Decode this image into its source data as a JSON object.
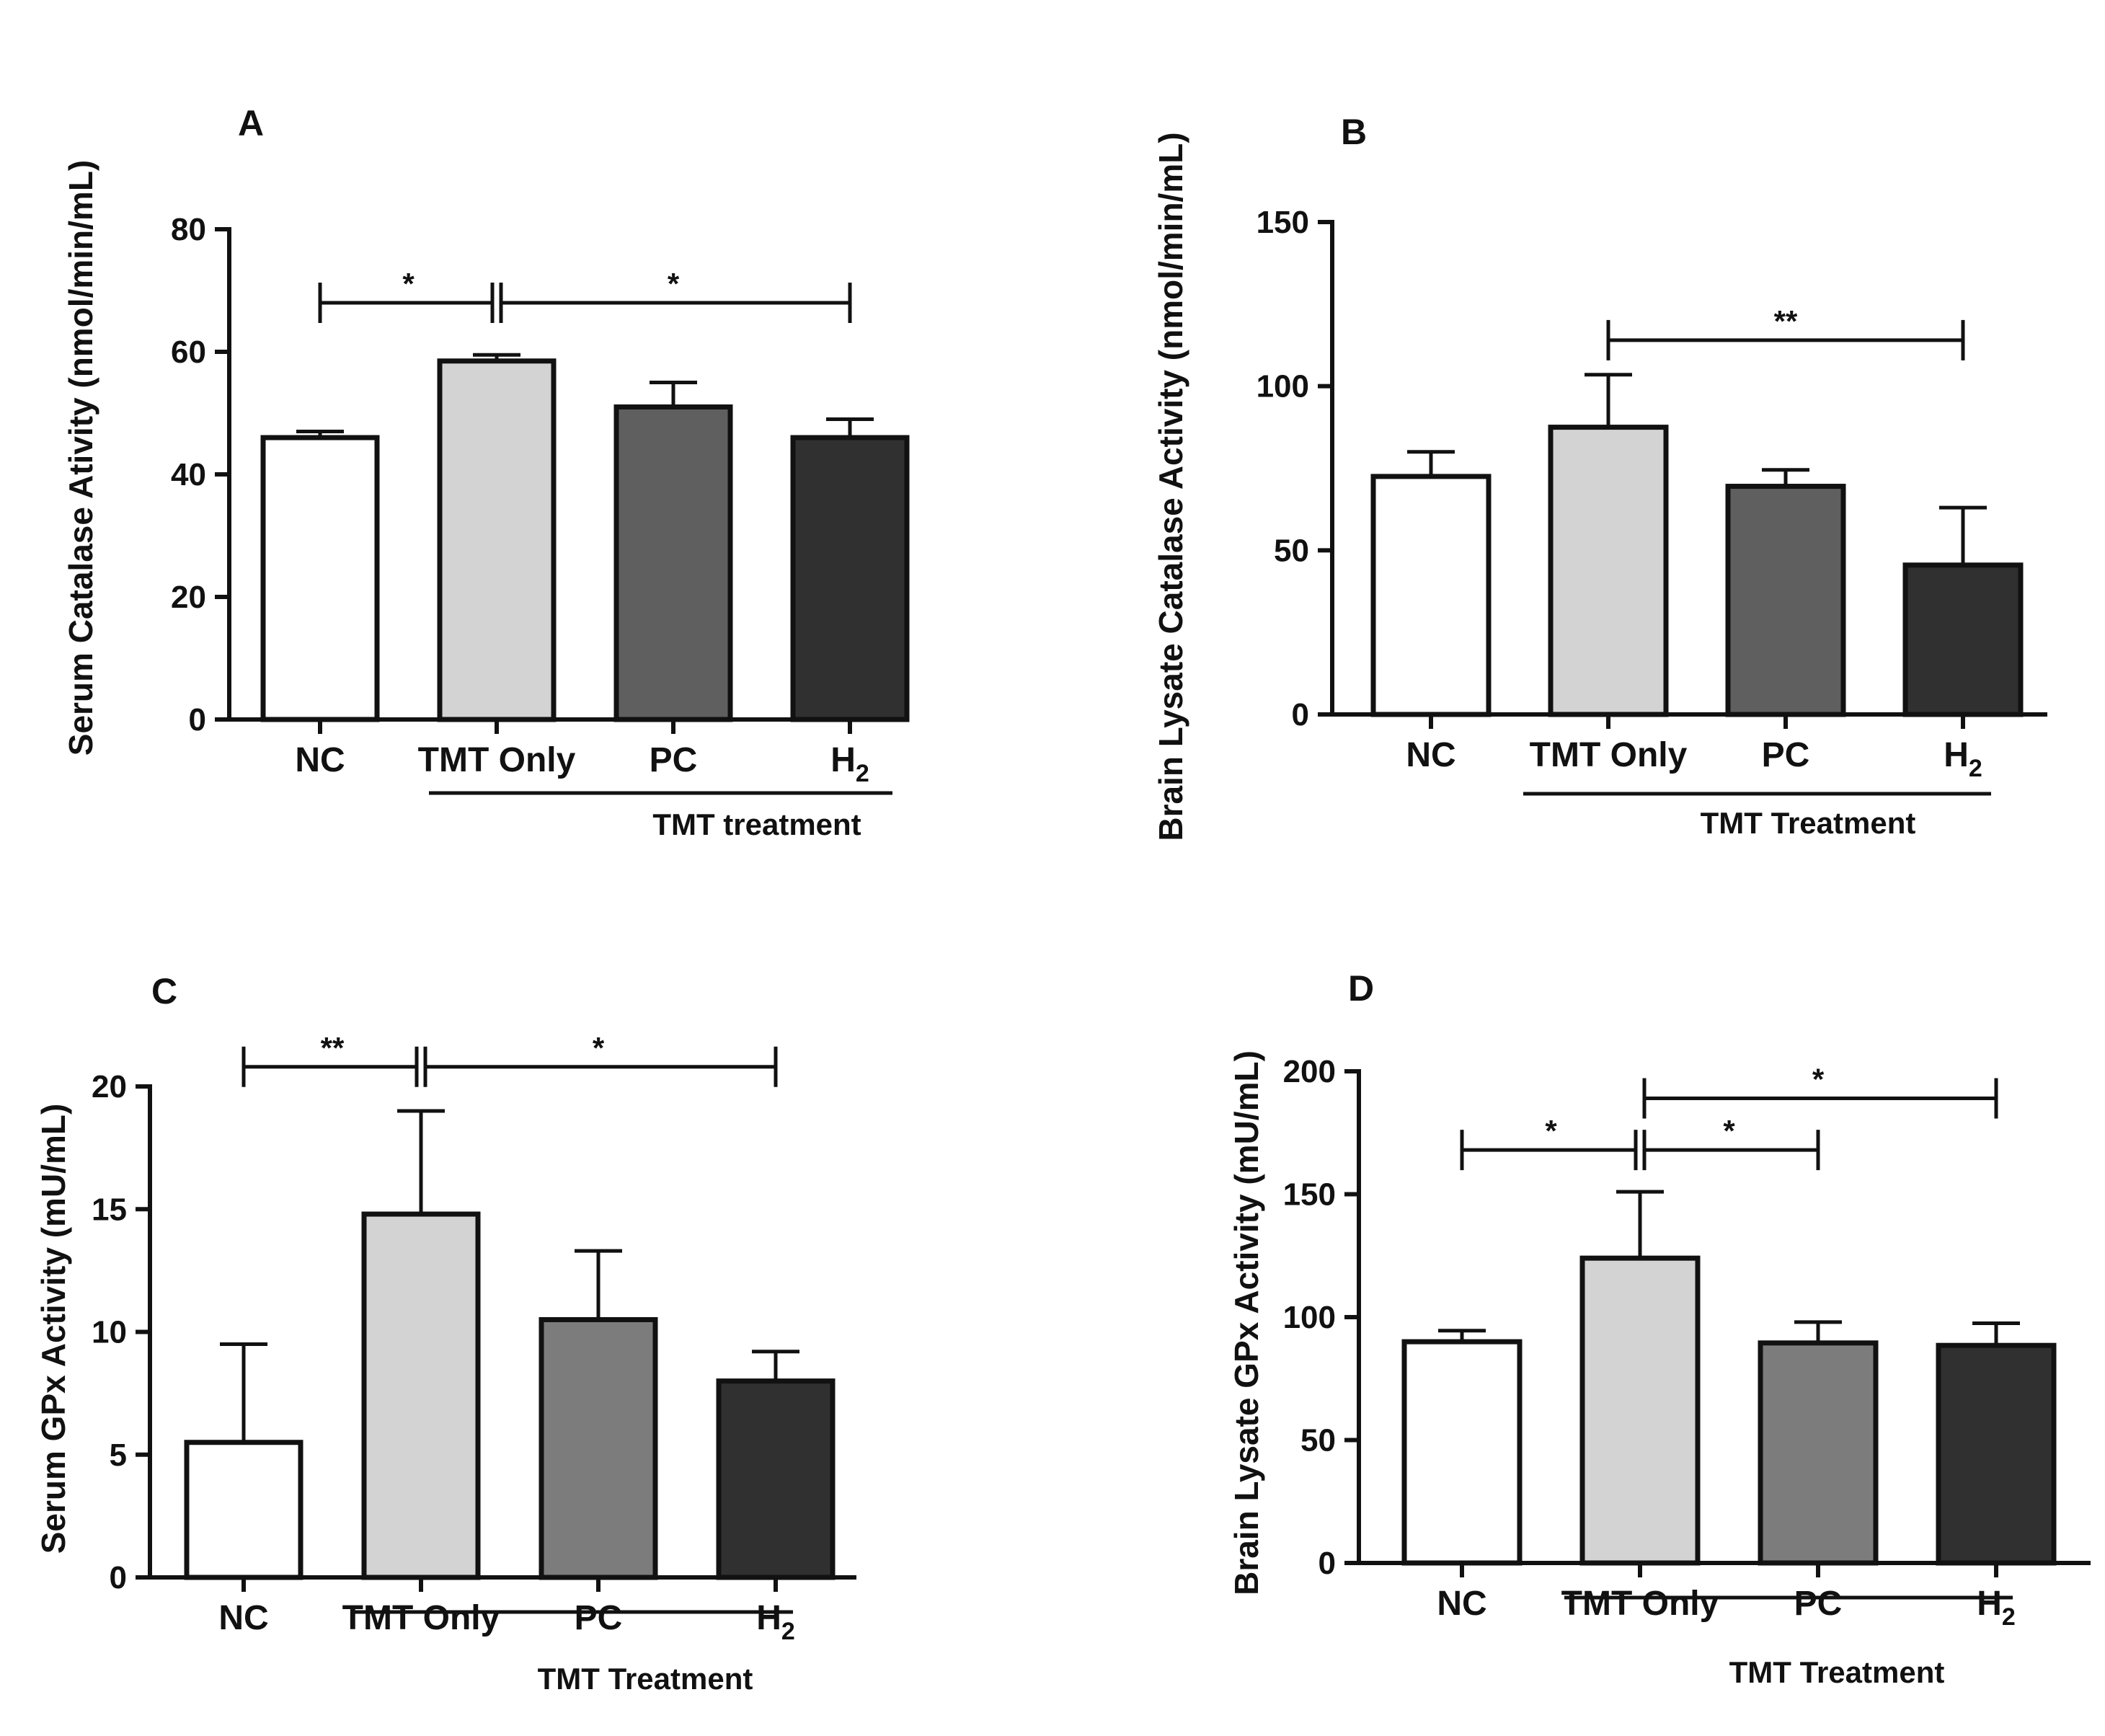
{
  "chart_data": [
    {
      "type": "bar",
      "panel": "A",
      "ylabel": "Serum Catalase Ativity (nmol/min/mL)",
      "categories": [
        "NC",
        "TMT Only",
        "PC",
        "H2"
      ],
      "values": [
        46,
        58.5,
        51,
        46
      ],
      "errors": [
        1,
        1,
        4,
        3
      ],
      "colors": [
        "#ffffff",
        "#d3d3d3",
        "#5f5f5f",
        "#303030"
      ],
      "ylim": [
        0,
        80
      ],
      "yticks": [
        "0",
        "20",
        "40",
        "60",
        "80"
      ],
      "group_label": "TMT treatment",
      "significance": [
        {
          "from": 0,
          "to": 1,
          "label": "*",
          "level": 68
        },
        {
          "from": 1,
          "to": 3,
          "label": "*",
          "level": 68
        }
      ]
    },
    {
      "type": "bar",
      "panel": "B",
      "ylabel": "Brain Lysate Catalase Activity (nmol/min/mL)",
      "categories": [
        "NC",
        "TMT Only",
        "PC",
        "H2"
      ],
      "values": [
        72.5,
        87.5,
        69.5,
        45.5
      ],
      "errors": [
        7.5,
        16,
        5,
        17.5
      ],
      "colors": [
        "#ffffff",
        "#d3d3d3",
        "#5f5f5f",
        "#303030"
      ],
      "ylim": [
        0,
        150
      ],
      "yticks": [
        "0",
        "50",
        "100",
        "150"
      ],
      "group_label": "TMT Treatment",
      "significance": [
        {
          "from": 1,
          "to": 3,
          "label": "**",
          "level": 114
        }
      ]
    },
    {
      "type": "bar",
      "panel": "C",
      "ylabel": "Serum GPx Activity (mU/mL)",
      "categories": [
        "NC",
        "TMT Only",
        "PC",
        "H2"
      ],
      "values": [
        5.5,
        14.8,
        10.5,
        8
      ],
      "errors": [
        4,
        4.2,
        2.8,
        1.2
      ],
      "colors": [
        "#ffffff",
        "#d3d3d3",
        "#7c7c7c",
        "#303030"
      ],
      "ylim": [
        0,
        20
      ],
      "yticks": [
        "0",
        "5",
        "10",
        "15",
        "20"
      ],
      "group_label": "TMT Treatment",
      "significance": [
        {
          "from": 0,
          "to": 1,
          "label": "**",
          "level": 20.8
        },
        {
          "from": 1,
          "to": 3,
          "label": "*",
          "level": 20.8
        }
      ]
    },
    {
      "type": "bar",
      "panel": "D",
      "ylabel": "Brain Lysate GPx Activity (mU/mL)",
      "categories": [
        "NC",
        "TMT Only",
        "PC",
        "H2"
      ],
      "values": [
        90,
        124,
        89.5,
        88.5
      ],
      "errors": [
        4.5,
        27,
        8.5,
        9
      ],
      "colors": [
        "#ffffff",
        "#d3d3d3",
        "#7c7c7c",
        "#303030"
      ],
      "ylim": [
        0,
        200
      ],
      "yticks": [
        "0",
        "50",
        "100",
        "150",
        "200"
      ],
      "group_label": "TMT Treatment",
      "significance": [
        {
          "from": 0,
          "to": 1,
          "label": "*",
          "level": 168
        },
        {
          "from": 1,
          "to": 2,
          "label": "*",
          "level": 168
        },
        {
          "from": 1,
          "to": 3,
          "label": "*",
          "level": 189
        }
      ]
    }
  ]
}
